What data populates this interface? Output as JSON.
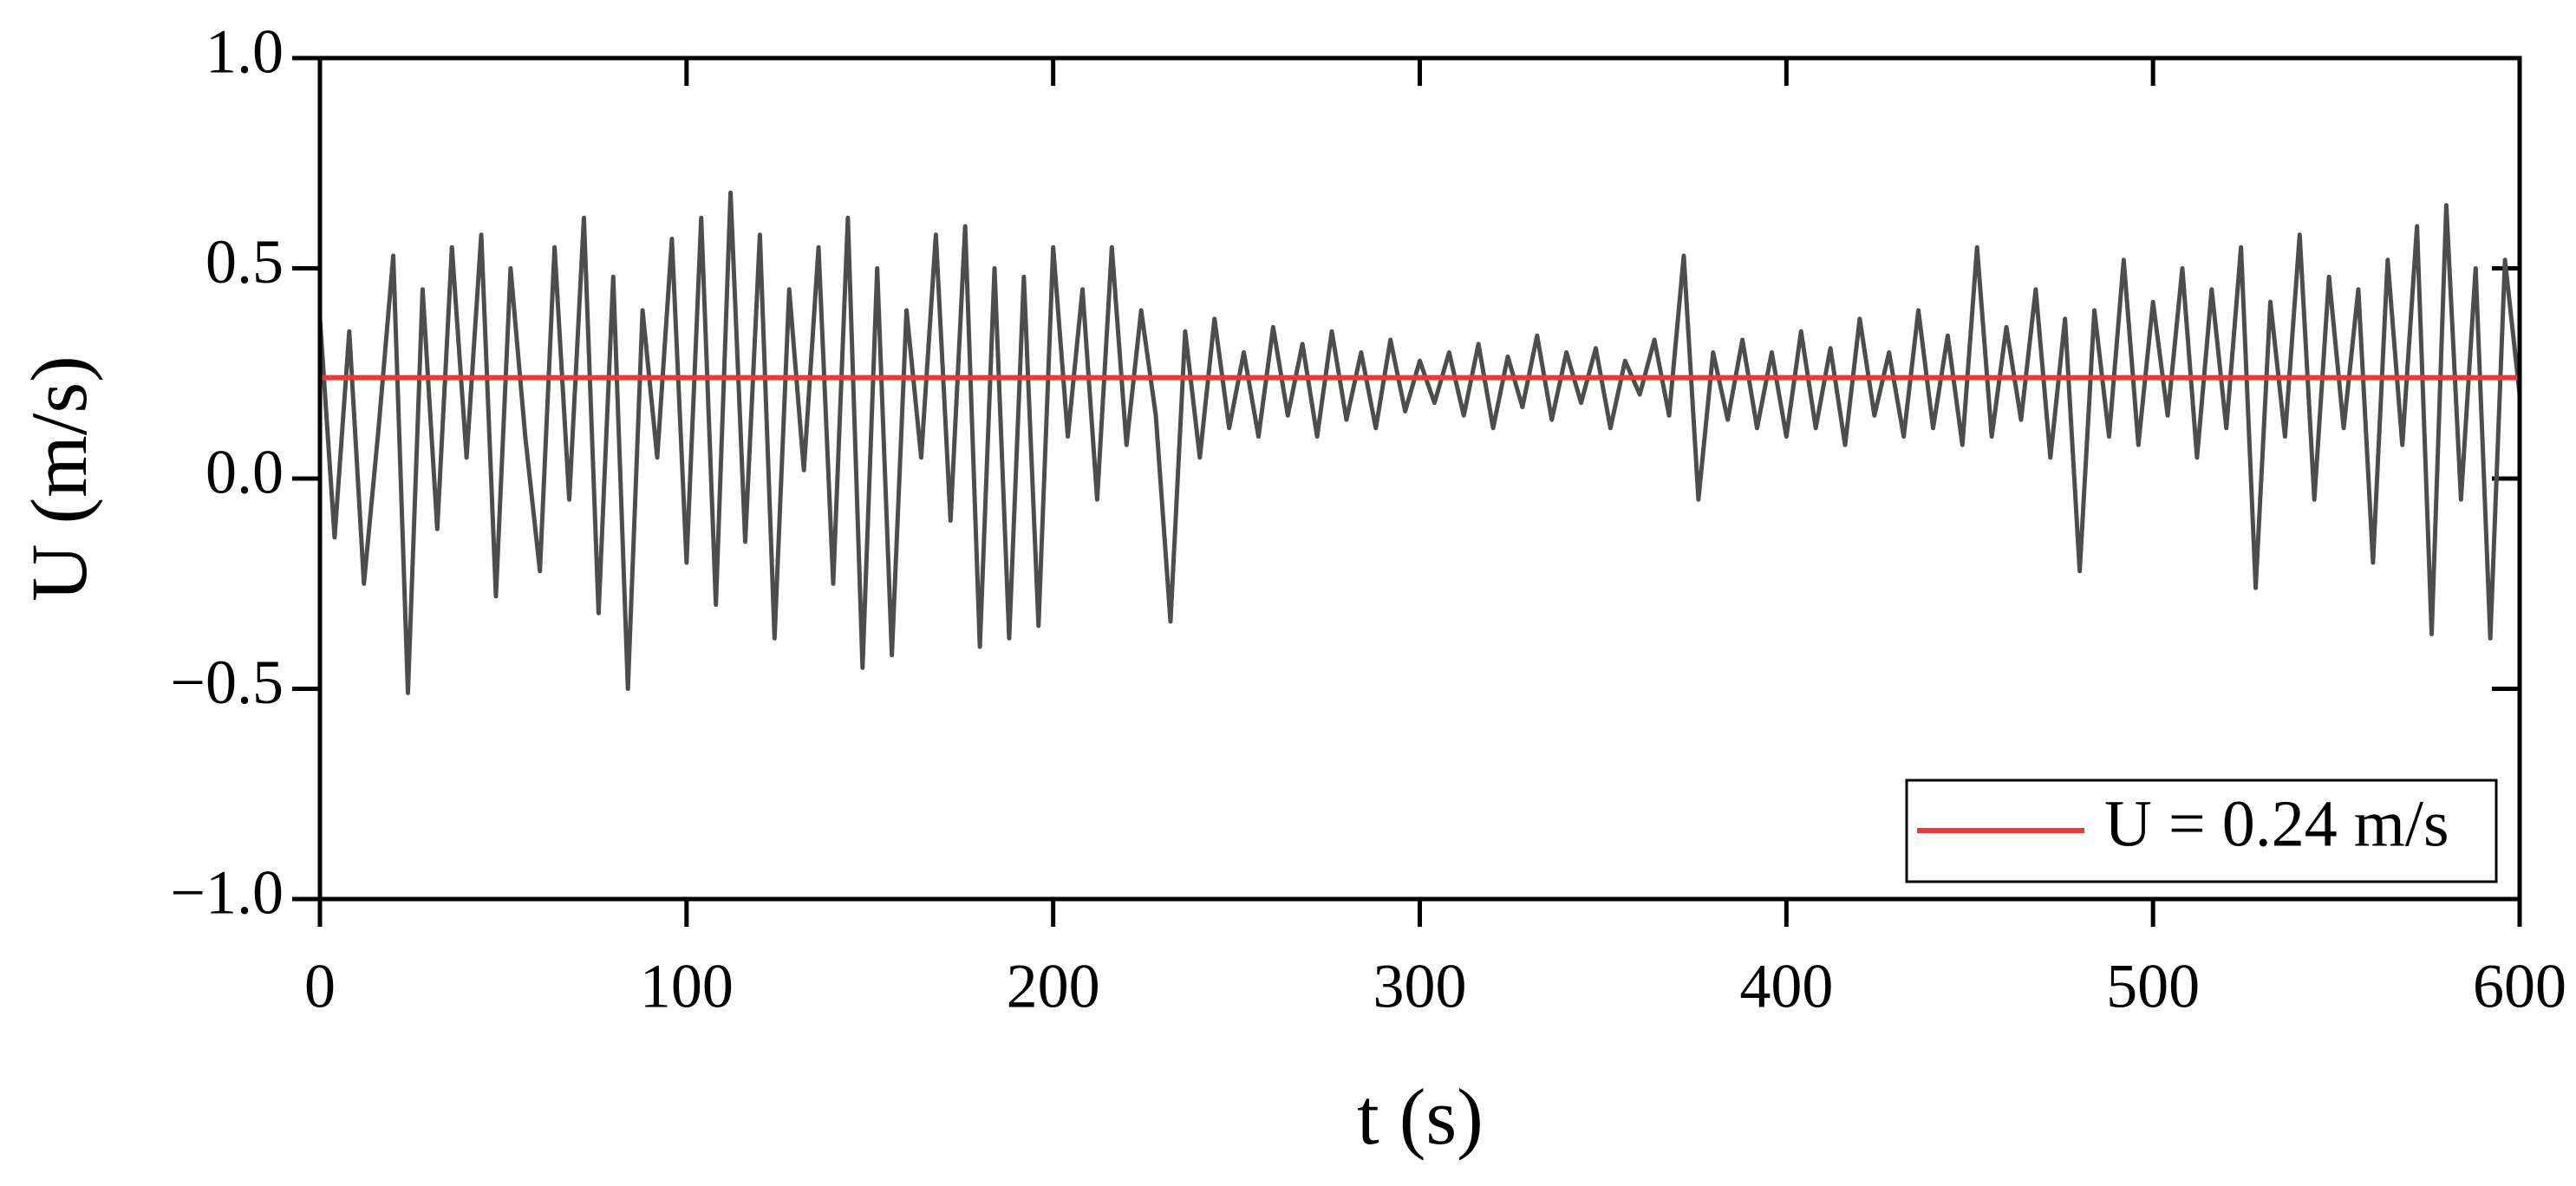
{
  "chart_data": {
    "type": "line",
    "xlabel": "t (s)",
    "ylabel": "U (m/s)",
    "xlim": [
      0,
      600
    ],
    "xticks": [
      0,
      100,
      200,
      300,
      400,
      500,
      600
    ],
    "ylim": [
      -1.0,
      1.0
    ],
    "yticks": [
      {
        "value": -1.0,
        "label": "−1.0"
      },
      {
        "value": -0.5,
        "label": "−0.5"
      },
      {
        "value": 0.0,
        "label": "0.0"
      },
      0.5,
      {
        "value": 1.0,
        "label": "1.0"
      }
    ],
    "legend": "lower right",
    "series": [
      {
        "color": "#4d4d4d",
        "x": [
          0,
          4,
          8,
          12,
          16,
          20,
          24,
          28,
          32,
          36,
          40,
          44,
          48,
          52,
          56,
          60,
          64,
          68,
          72,
          76,
          80,
          84,
          88,
          92,
          96,
          100,
          104,
          108,
          112,
          116,
          120,
          124,
          128,
          132,
          136,
          140,
          144,
          148,
          152,
          156,
          160,
          164,
          168,
          172,
          176,
          180,
          184,
          188,
          192,
          196,
          200,
          204,
          208,
          212,
          216,
          220,
          224,
          228,
          232,
          236,
          240,
          244,
          248,
          252,
          256,
          260,
          264,
          268,
          272,
          276,
          280,
          284,
          288,
          292,
          296,
          300,
          304,
          308,
          312,
          316,
          320,
          324,
          328,
          332,
          336,
          340,
          344,
          348,
          352,
          356,
          360,
          364,
          368,
          372,
          376,
          380,
          384,
          388,
          392,
          396,
          400,
          404,
          408,
          412,
          416,
          420,
          424,
          428,
          432,
          436,
          440,
          444,
          448,
          452,
          456,
          460,
          464,
          468,
          472,
          476,
          480,
          484,
          488,
          492,
          496,
          500,
          504,
          508,
          512,
          516,
          520,
          524,
          528,
          532,
          536,
          540,
          544,
          548,
          552,
          556,
          560,
          564,
          568,
          572,
          576,
          580,
          584,
          588,
          592,
          596,
          600
        ],
        "values": [
          0.38,
          -0.14,
          0.35,
          -0.25,
          0.12,
          0.53,
          -0.51,
          0.45,
          -0.12,
          0.55,
          0.05,
          0.58,
          -0.28,
          0.5,
          0.1,
          -0.22,
          0.55,
          -0.05,
          0.62,
          -0.32,
          0.48,
          -0.5,
          0.4,
          0.05,
          0.57,
          -0.2,
          0.62,
          -0.3,
          0.68,
          -0.15,
          0.58,
          -0.38,
          0.45,
          0.02,
          0.55,
          -0.25,
          0.62,
          -0.45,
          0.5,
          -0.42,
          0.4,
          0.05,
          0.58,
          -0.1,
          0.6,
          -0.4,
          0.5,
          -0.38,
          0.48,
          -0.35,
          0.55,
          0.1,
          0.45,
          -0.05,
          0.55,
          0.08,
          0.4,
          0.15,
          -0.34,
          0.35,
          0.05,
          0.38,
          0.12,
          0.3,
          0.1,
          0.36,
          0.15,
          0.32,
          0.1,
          0.35,
          0.14,
          0.3,
          0.12,
          0.33,
          0.16,
          0.28,
          0.18,
          0.3,
          0.15,
          0.32,
          0.12,
          0.29,
          0.17,
          0.34,
          0.14,
          0.3,
          0.18,
          0.31,
          0.12,
          0.28,
          0.2,
          0.33,
          0.15,
          0.53,
          -0.05,
          0.3,
          0.14,
          0.33,
          0.12,
          0.3,
          0.1,
          0.35,
          0.12,
          0.31,
          0.08,
          0.38,
          0.15,
          0.3,
          0.1,
          0.4,
          0.12,
          0.34,
          0.08,
          0.55,
          0.1,
          0.36,
          0.14,
          0.45,
          0.05,
          0.38,
          -0.22,
          0.4,
          0.1,
          0.52,
          0.08,
          0.42,
          0.15,
          0.5,
          0.05,
          0.45,
          0.12,
          0.55,
          -0.26,
          0.42,
          0.1,
          0.58,
          -0.05,
          0.48,
          0.12,
          0.45,
          -0.2,
          0.52,
          0.08,
          0.6,
          -0.37,
          0.65,
          -0.05,
          0.5,
          -0.38,
          0.52,
          0.2
        ]
      },
      {
        "name": "U = 0.24 m/s",
        "color": "#e8393b",
        "x": [
          0,
          600
        ],
        "values": [
          0.24,
          0.24
        ]
      }
    ]
  }
}
